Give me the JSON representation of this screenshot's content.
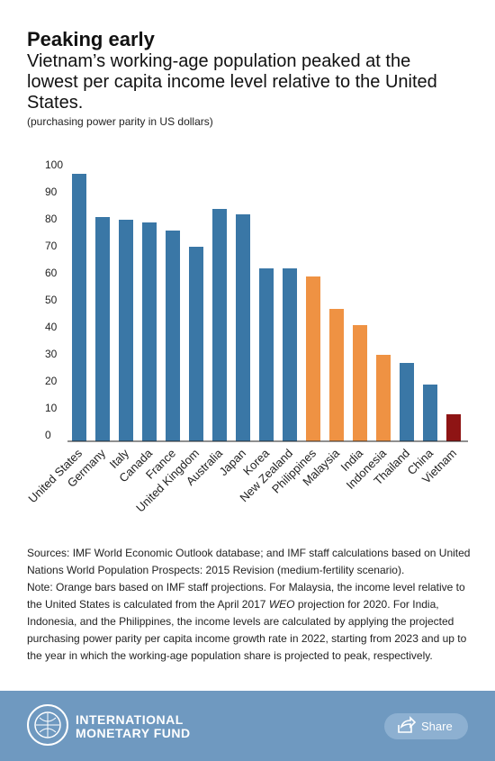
{
  "chart_data": {
    "type": "bar",
    "title": "Peaking early",
    "subtitle": "Vietnam’s working-age population peaked at the lowest per capita income level relative to the United States.",
    "unit_note": "(purchasing power parity in US dollars)",
    "categories": [
      "United States",
      "Germany",
      "Italy",
      "Canada",
      "France",
      "United Kingdom",
      "Australia",
      "Japan",
      "Korea",
      "New Zealand",
      "Philippines",
      "Malaysia",
      "India",
      "Indonesia",
      "Thailand",
      "China",
      "Vietnam"
    ],
    "values": [
      99,
      83,
      82,
      81,
      78,
      72,
      86,
      84,
      64,
      64,
      61,
      49,
      43,
      32,
      29,
      21,
      10
    ],
    "colors": [
      "#3a77a6",
      "#3a77a6",
      "#3a77a6",
      "#3a77a6",
      "#3a77a6",
      "#3a77a6",
      "#3a77a6",
      "#3a77a6",
      "#3a77a6",
      "#3a77a6",
      "#ef9243",
      "#ef9243",
      "#ef9243",
      "#ef9243",
      "#3a77a6",
      "#3a77a6",
      "#8e1414"
    ],
    "ylim": [
      0,
      100
    ],
    "yticks": [
      0,
      10,
      20,
      30,
      40,
      50,
      60,
      70,
      80,
      90,
      100
    ],
    "grid": false
  },
  "notes": {
    "sources": "Sources: IMF World Economic Outlook database; and IMF staff calculations based on United Nations World Population Prospects: 2015 Revision (medium-fertility scenario).",
    "note": [
      "Note: Orange bars based on IMF staff projections. For Malaysia, the income level relative to the United States is calculated from the April 2017 ",
      "WEO",
      " projection for 2020. For India, Indonesia, and the Philippines, the income levels are calculated by applying the projected purchasing power parity per capita income growth rate in 2022, starting from 2023 and up to the year in which the working-age population share is projected to peak, respectively."
    ]
  },
  "footer": {
    "logo_text": [
      "INTERNATIONAL",
      "MONETARY FUND"
    ],
    "share": "Share"
  }
}
